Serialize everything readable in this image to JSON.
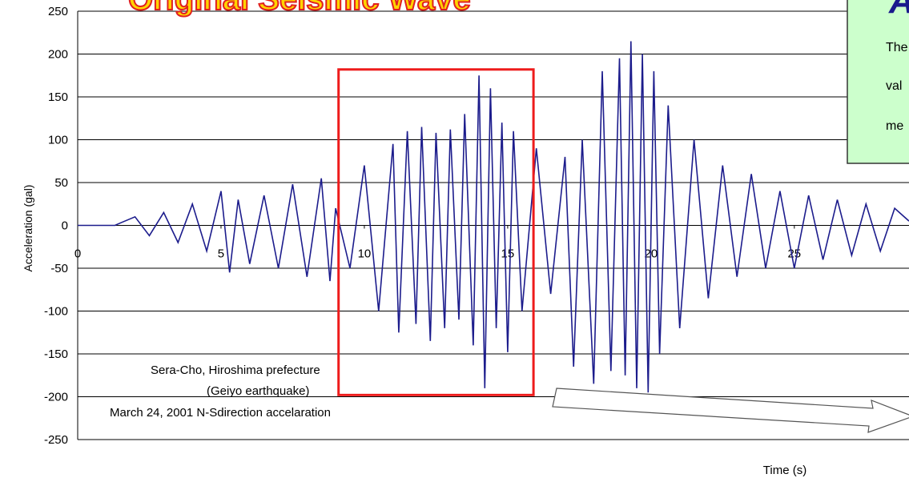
{
  "chart_data": {
    "type": "line",
    "title": "Original Seismic Wave",
    "xlabel": "Time (s)",
    "ylabel": "Acceleration (gal)",
    "xlim": [
      0,
      29
    ],
    "ylim": [
      -250,
      250
    ],
    "x_ticks": [
      "0",
      "5",
      "10",
      "15",
      "20",
      "25"
    ],
    "y_ticks": [
      "250",
      "200",
      "150",
      "100",
      "50",
      "0",
      "-50",
      "-100",
      "-150",
      "-200",
      "-250"
    ],
    "grid": "horizontal",
    "series_color": "#1c1c8c",
    "highlight_color": "#ee1c1c",
    "highlight_x_range": [
      9.1,
      15.9
    ],
    "highlight_y_range": [
      -198,
      182
    ],
    "series": [
      {
        "x": [
          0,
          1.3,
          1.5,
          2,
          2.5,
          3,
          3.5,
          4,
          4.5,
          5,
          5.3,
          5.6,
          6,
          6.5,
          7,
          7.5,
          8,
          8.5,
          8.8,
          9,
          9.5,
          10,
          10.5,
          11,
          11.2,
          11.5,
          11.8,
          12,
          12.3,
          12.5,
          12.8,
          13,
          13.3,
          13.5,
          13.8,
          14,
          14.2,
          14.4,
          14.6,
          14.8,
          15,
          15.2,
          15.5,
          16,
          16.5,
          17,
          17.3,
          17.6,
          18,
          18.3,
          18.6,
          18.9,
          19.1,
          19.3,
          19.5,
          19.7,
          19.9,
          20.1,
          20.3,
          20.6,
          21,
          21.5,
          22,
          22.5,
          23,
          23.5,
          24,
          24.5,
          25,
          25.5,
          26,
          26.5,
          27,
          27.5,
          28,
          28.5,
          29
        ],
        "y": [
          0,
          0,
          3,
          10,
          -12,
          15,
          -20,
          25,
          -30,
          40,
          -55,
          30,
          -45,
          35,
          -50,
          48,
          -60,
          55,
          -65,
          20,
          -50,
          70,
          -100,
          95,
          -125,
          110,
          -115,
          115,
          -135,
          108,
          -120,
          112,
          -110,
          130,
          -140,
          175,
          -190,
          160,
          -120,
          120,
          -148,
          110,
          -100,
          90,
          -80,
          80,
          -165,
          100,
          -185,
          180,
          -170,
          195,
          -175,
          215,
          -190,
          200,
          -195,
          180,
          -150,
          140,
          -120,
          100,
          -85,
          70,
          -60,
          60,
          -50,
          40,
          -50,
          35,
          -40,
          30,
          -35,
          25,
          -30,
          20,
          5
        ]
      }
    ],
    "annotations": [
      "Sera-Cho, Hiroshima prefecture",
      "(Geiyo earthquake)",
      "March 24, 2001   N-Sdirection accelaration"
    ]
  },
  "info_box": {
    "heading": "A",
    "lines": [
      "The",
      "val",
      "me"
    ],
    "fill": "#ccffcc"
  }
}
